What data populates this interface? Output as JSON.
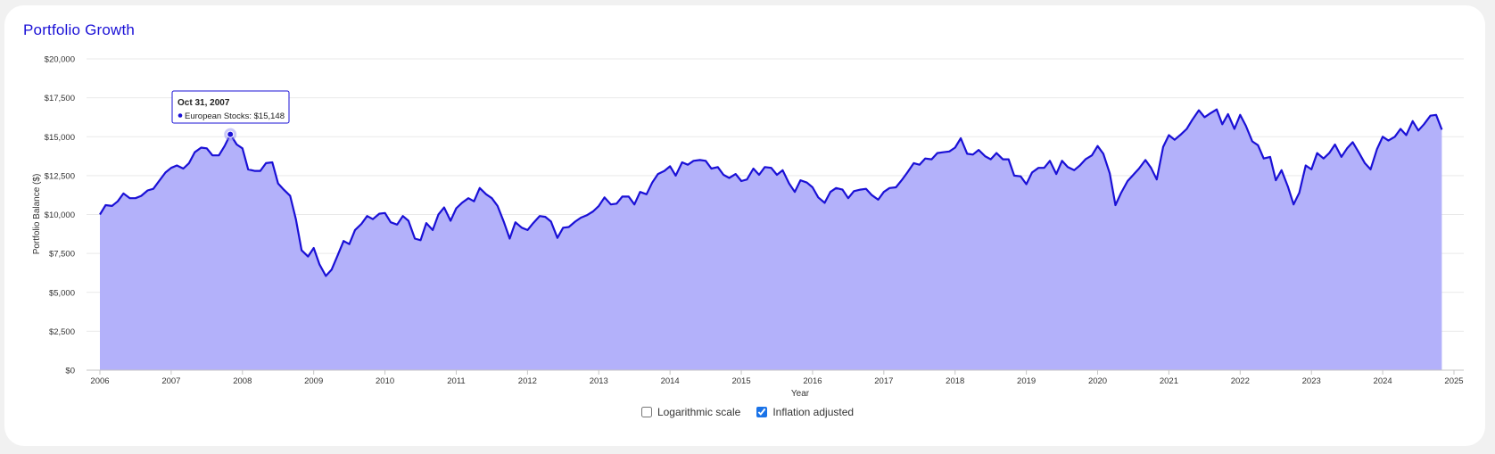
{
  "panel": {
    "title": "Portfolio Growth"
  },
  "controls": {
    "log_scale": {
      "label": "Logarithmic scale",
      "checked": false
    },
    "inflation": {
      "label": "Inflation adjusted",
      "checked": true
    }
  },
  "tooltip": {
    "date": "Oct 31, 2007",
    "series": "European Stocks",
    "value_text": "$15,148",
    "x": 2007.83,
    "y": 15148
  },
  "chart_data": {
    "type": "area",
    "title": "Portfolio Growth",
    "xlabel": "Year",
    "ylabel": "Portfolio Balance ($)",
    "xlim": [
      2006,
      2025
    ],
    "ylim": [
      0,
      20000
    ],
    "x_ticks": [
      "2006",
      "2007",
      "2008",
      "2009",
      "2010",
      "2011",
      "2012",
      "2013",
      "2014",
      "2015",
      "2016",
      "2017",
      "2018",
      "2019",
      "2020",
      "2021",
      "2022",
      "2023",
      "2024",
      "2025"
    ],
    "y_ticks": [
      "$0",
      "$2,500",
      "$5,000",
      "$7,500",
      "$10,000",
      "$12,500",
      "$15,000",
      "$17,500",
      "$20,000"
    ],
    "grid": true,
    "colors": {
      "line": "#1a10d6",
      "fill": "#b3b1fa",
      "grid": "#e9e9e9"
    },
    "series": [
      {
        "name": "European Stocks",
        "points": [
          [
            2006.0,
            10000
          ],
          [
            2006.08,
            10600
          ],
          [
            2006.17,
            10550
          ],
          [
            2006.25,
            10850
          ],
          [
            2006.33,
            11350
          ],
          [
            2006.42,
            11050
          ],
          [
            2006.5,
            11050
          ],
          [
            2006.58,
            11200
          ],
          [
            2006.67,
            11550
          ],
          [
            2006.75,
            11650
          ],
          [
            2006.83,
            12150
          ],
          [
            2006.92,
            12700
          ],
          [
            2007.0,
            13000
          ],
          [
            2007.08,
            13150
          ],
          [
            2007.17,
            12950
          ],
          [
            2007.25,
            13300
          ],
          [
            2007.33,
            14000
          ],
          [
            2007.42,
            14300
          ],
          [
            2007.5,
            14250
          ],
          [
            2007.58,
            13800
          ],
          [
            2007.67,
            13800
          ],
          [
            2007.75,
            14400
          ],
          [
            2007.83,
            15148
          ],
          [
            2007.92,
            14500
          ],
          [
            2008.0,
            14250
          ],
          [
            2008.08,
            12900
          ],
          [
            2008.17,
            12800
          ],
          [
            2008.25,
            12800
          ],
          [
            2008.33,
            13300
          ],
          [
            2008.42,
            13350
          ],
          [
            2008.5,
            12000
          ],
          [
            2008.58,
            11600
          ],
          [
            2008.67,
            11200
          ],
          [
            2008.75,
            9700
          ],
          [
            2008.83,
            7700
          ],
          [
            2008.92,
            7300
          ],
          [
            2009.0,
            7850
          ],
          [
            2009.08,
            6800
          ],
          [
            2009.17,
            6050
          ],
          [
            2009.25,
            6450
          ],
          [
            2009.33,
            7300
          ],
          [
            2009.42,
            8300
          ],
          [
            2009.5,
            8100
          ],
          [
            2009.58,
            9000
          ],
          [
            2009.67,
            9400
          ],
          [
            2009.75,
            9900
          ],
          [
            2009.83,
            9700
          ],
          [
            2009.92,
            10050
          ],
          [
            2010.0,
            10100
          ],
          [
            2010.08,
            9500
          ],
          [
            2010.17,
            9350
          ],
          [
            2010.25,
            9900
          ],
          [
            2010.33,
            9600
          ],
          [
            2010.42,
            8450
          ],
          [
            2010.5,
            8350
          ],
          [
            2010.58,
            9450
          ],
          [
            2010.67,
            9000
          ],
          [
            2010.75,
            10000
          ],
          [
            2010.83,
            10450
          ],
          [
            2010.92,
            9600
          ],
          [
            2011.0,
            10400
          ],
          [
            2011.08,
            10750
          ],
          [
            2011.17,
            11050
          ],
          [
            2011.25,
            10850
          ],
          [
            2011.33,
            11700
          ],
          [
            2011.42,
            11300
          ],
          [
            2011.5,
            11050
          ],
          [
            2011.58,
            10550
          ],
          [
            2011.67,
            9500
          ],
          [
            2011.75,
            8450
          ],
          [
            2011.83,
            9500
          ],
          [
            2011.92,
            9150
          ],
          [
            2012.0,
            9000
          ],
          [
            2012.08,
            9450
          ],
          [
            2012.17,
            9900
          ],
          [
            2012.25,
            9850
          ],
          [
            2012.33,
            9550
          ],
          [
            2012.42,
            8500
          ],
          [
            2012.5,
            9150
          ],
          [
            2012.58,
            9200
          ],
          [
            2012.67,
            9550
          ],
          [
            2012.75,
            9800
          ],
          [
            2012.83,
            9950
          ],
          [
            2012.92,
            10200
          ],
          [
            2013.0,
            10550
          ],
          [
            2013.08,
            11100
          ],
          [
            2013.17,
            10650
          ],
          [
            2013.25,
            10700
          ],
          [
            2013.33,
            11150
          ],
          [
            2013.42,
            11150
          ],
          [
            2013.5,
            10650
          ],
          [
            2013.58,
            11450
          ],
          [
            2013.67,
            11300
          ],
          [
            2013.75,
            12050
          ],
          [
            2013.83,
            12600
          ],
          [
            2013.92,
            12800
          ],
          [
            2014.0,
            13100
          ],
          [
            2014.08,
            12500
          ],
          [
            2014.17,
            13350
          ],
          [
            2014.25,
            13200
          ],
          [
            2014.33,
            13450
          ],
          [
            2014.42,
            13500
          ],
          [
            2014.5,
            13450
          ],
          [
            2014.58,
            12950
          ],
          [
            2014.67,
            13050
          ],
          [
            2014.75,
            12550
          ],
          [
            2014.83,
            12350
          ],
          [
            2014.92,
            12600
          ],
          [
            2015.0,
            12150
          ],
          [
            2015.08,
            12250
          ],
          [
            2015.17,
            12950
          ],
          [
            2015.25,
            12550
          ],
          [
            2015.33,
            13050
          ],
          [
            2015.42,
            13000
          ],
          [
            2015.5,
            12550
          ],
          [
            2015.58,
            12850
          ],
          [
            2015.67,
            12000
          ],
          [
            2015.75,
            11450
          ],
          [
            2015.83,
            12200
          ],
          [
            2015.92,
            12050
          ],
          [
            2016.0,
            11750
          ],
          [
            2016.08,
            11100
          ],
          [
            2016.17,
            10750
          ],
          [
            2016.25,
            11450
          ],
          [
            2016.33,
            11700
          ],
          [
            2016.42,
            11600
          ],
          [
            2016.5,
            11050
          ],
          [
            2016.58,
            11500
          ],
          [
            2016.67,
            11600
          ],
          [
            2016.75,
            11650
          ],
          [
            2016.83,
            11250
          ],
          [
            2016.92,
            10950
          ],
          [
            2017.0,
            11450
          ],
          [
            2017.08,
            11700
          ],
          [
            2017.17,
            11750
          ],
          [
            2017.25,
            12200
          ],
          [
            2017.33,
            12700
          ],
          [
            2017.42,
            13300
          ],
          [
            2017.5,
            13200
          ],
          [
            2017.58,
            13600
          ],
          [
            2017.67,
            13550
          ],
          [
            2017.75,
            13950
          ],
          [
            2017.83,
            14000
          ],
          [
            2017.92,
            14050
          ],
          [
            2018.0,
            14300
          ],
          [
            2018.08,
            14900
          ],
          [
            2018.17,
            13900
          ],
          [
            2018.25,
            13850
          ],
          [
            2018.33,
            14150
          ],
          [
            2018.42,
            13750
          ],
          [
            2018.5,
            13550
          ],
          [
            2018.58,
            13950
          ],
          [
            2018.67,
            13550
          ],
          [
            2018.75,
            13550
          ],
          [
            2018.83,
            12500
          ],
          [
            2018.92,
            12450
          ],
          [
            2019.0,
            11950
          ],
          [
            2019.08,
            12700
          ],
          [
            2019.17,
            13000
          ],
          [
            2019.25,
            13000
          ],
          [
            2019.33,
            13450
          ],
          [
            2019.42,
            12600
          ],
          [
            2019.5,
            13450
          ],
          [
            2019.58,
            13050
          ],
          [
            2019.67,
            12850
          ],
          [
            2019.75,
            13150
          ],
          [
            2019.83,
            13550
          ],
          [
            2019.92,
            13800
          ],
          [
            2020.0,
            14400
          ],
          [
            2020.08,
            13900
          ],
          [
            2020.17,
            12650
          ],
          [
            2020.25,
            10600
          ],
          [
            2020.33,
            11400
          ],
          [
            2020.42,
            12150
          ],
          [
            2020.5,
            12550
          ],
          [
            2020.58,
            12950
          ],
          [
            2020.67,
            13500
          ],
          [
            2020.75,
            13000
          ],
          [
            2020.83,
            12250
          ],
          [
            2020.92,
            14350
          ],
          [
            2021.0,
            15100
          ],
          [
            2021.08,
            14800
          ],
          [
            2021.17,
            15150
          ],
          [
            2021.25,
            15500
          ],
          [
            2021.33,
            16100
          ],
          [
            2021.42,
            16700
          ],
          [
            2021.5,
            16250
          ],
          [
            2021.58,
            16500
          ],
          [
            2021.67,
            16750
          ],
          [
            2021.75,
            15800
          ],
          [
            2021.83,
            16450
          ],
          [
            2021.92,
            15500
          ],
          [
            2022.0,
            16400
          ],
          [
            2022.08,
            15700
          ],
          [
            2022.17,
            14700
          ],
          [
            2022.25,
            14450
          ],
          [
            2022.33,
            13600
          ],
          [
            2022.42,
            13700
          ],
          [
            2022.5,
            12200
          ],
          [
            2022.58,
            12850
          ],
          [
            2022.67,
            11800
          ],
          [
            2022.75,
            10650
          ],
          [
            2022.83,
            11400
          ],
          [
            2022.92,
            13150
          ],
          [
            2023.0,
            12900
          ],
          [
            2023.08,
            13950
          ],
          [
            2023.17,
            13600
          ],
          [
            2023.25,
            13950
          ],
          [
            2023.33,
            14500
          ],
          [
            2023.42,
            13700
          ],
          [
            2023.5,
            14250
          ],
          [
            2023.58,
            14650
          ],
          [
            2023.67,
            13950
          ],
          [
            2023.75,
            13300
          ],
          [
            2023.83,
            12900
          ],
          [
            2023.92,
            14200
          ],
          [
            2024.0,
            15000
          ],
          [
            2024.08,
            14750
          ],
          [
            2024.17,
            15000
          ],
          [
            2024.25,
            15500
          ],
          [
            2024.33,
            15100
          ],
          [
            2024.42,
            16000
          ],
          [
            2024.5,
            15400
          ],
          [
            2024.58,
            15800
          ],
          [
            2024.67,
            16350
          ],
          [
            2024.75,
            16400
          ],
          [
            2024.83,
            15450
          ]
        ]
      }
    ]
  }
}
